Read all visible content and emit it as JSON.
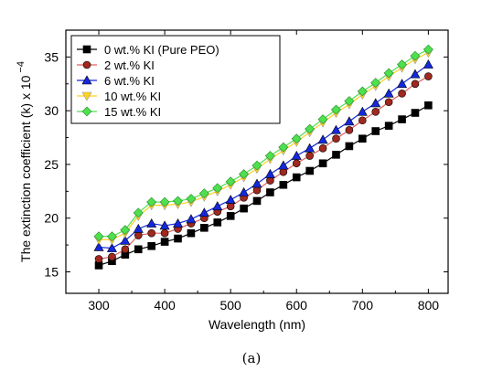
{
  "chart_data": {
    "type": "line",
    "xlabel": "Wavelength (nm)",
    "ylabel": "The extinction coefficient (k) x 10",
    "ylabel_exponent": "−4",
    "xlim": [
      250,
      830
    ],
    "ylim": [
      13,
      37.5
    ],
    "xticks": [
      300,
      400,
      500,
      600,
      700,
      800
    ],
    "yticks": [
      15,
      20,
      25,
      30,
      35
    ],
    "grid": false,
    "legend_position": "top-left",
    "x": [
      300,
      320,
      340,
      360,
      380,
      400,
      420,
      440,
      460,
      480,
      500,
      520,
      540,
      560,
      580,
      600,
      620,
      640,
      660,
      680,
      700,
      720,
      740,
      760,
      780,
      800
    ],
    "series": [
      {
        "name": "0   wt.% KI (Pure  PEO)",
        "color": "#000000",
        "marker": "square",
        "values": [
          15.6,
          16.0,
          16.6,
          17.1,
          17.4,
          17.8,
          18.1,
          18.6,
          19.1,
          19.6,
          20.2,
          20.9,
          21.6,
          22.4,
          23.1,
          23.8,
          24.4,
          25.1,
          25.9,
          26.7,
          27.4,
          28.1,
          28.6,
          29.2,
          29.8,
          30.5
        ]
      },
      {
        "name": "2   wt.% KI",
        "color": "#a0281e",
        "marker": "circle",
        "values": [
          16.2,
          16.4,
          17.1,
          18.4,
          18.6,
          18.6,
          19.0,
          19.5,
          20.0,
          20.6,
          21.1,
          21.9,
          22.6,
          23.5,
          24.3,
          25.1,
          25.8,
          26.5,
          27.4,
          28.2,
          29.1,
          29.9,
          30.8,
          31.6,
          32.5,
          33.2
        ]
      },
      {
        "name": "6   wt.% KI",
        "color": "#1428dc",
        "marker": "triangle-up",
        "values": [
          17.3,
          17.2,
          17.9,
          19.0,
          19.5,
          19.3,
          19.5,
          19.9,
          20.5,
          21.1,
          21.7,
          22.4,
          23.2,
          24.1,
          24.9,
          25.8,
          26.5,
          27.3,
          28.2,
          29.0,
          29.9,
          30.7,
          31.6,
          32.5,
          33.4,
          34.3
        ]
      },
      {
        "name": "10 wt.% KI",
        "color": "#ffd21e",
        "marker": "triangle-down",
        "values": [
          18.0,
          18.0,
          18.6,
          20.2,
          21.2,
          21.2,
          21.3,
          21.5,
          22.0,
          22.5,
          23.1,
          23.8,
          24.6,
          25.5,
          26.3,
          27.1,
          28.0,
          28.9,
          29.8,
          30.6,
          31.5,
          32.3,
          33.2,
          34.0,
          34.8,
          35.4
        ]
      },
      {
        "name": "15 wt.% KI",
        "color": "#4ee04e",
        "marker": "diamond",
        "values": [
          18.3,
          18.3,
          18.9,
          20.5,
          21.5,
          21.5,
          21.6,
          21.8,
          22.3,
          22.8,
          23.4,
          24.1,
          24.9,
          25.8,
          26.6,
          27.4,
          28.3,
          29.2,
          30.1,
          30.9,
          31.8,
          32.6,
          33.5,
          34.3,
          35.1,
          35.7
        ]
      }
    ]
  },
  "caption": "(a)"
}
